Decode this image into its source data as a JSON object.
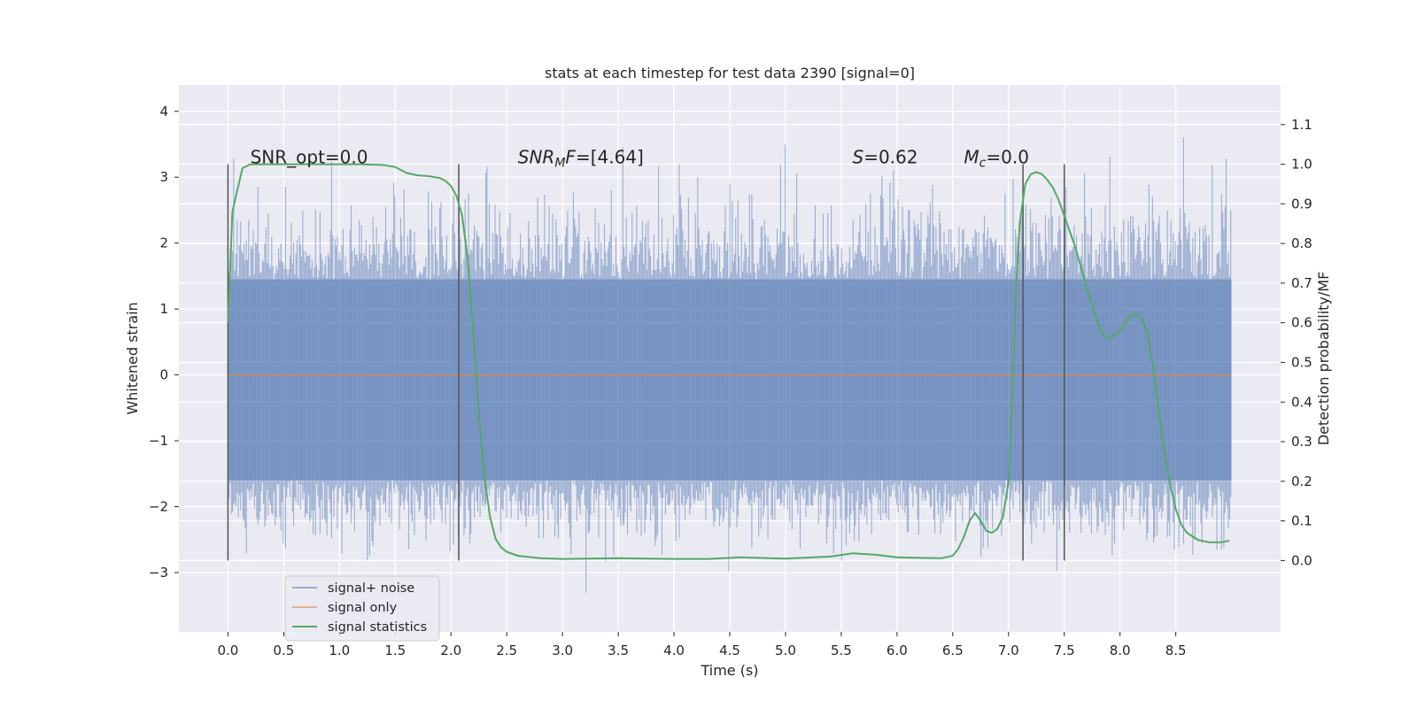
{
  "chart_data": {
    "type": "line",
    "title": "stats at each timestep for test data 2390 [signal=0]",
    "xlabel": "Time (s)",
    "ylabel": "Whitened strain",
    "y2label": "Detection probability/MF",
    "xlim": [
      -0.44,
      9.44
    ],
    "ylim": [
      -3.9,
      4.4
    ],
    "y2lim": [
      -0.18,
      1.2
    ],
    "x_ticks": [
      "0.0",
      "0.5",
      "1.0",
      "1.5",
      "2.0",
      "2.5",
      "3.0",
      "3.5",
      "4.0",
      "4.5",
      "5.0",
      "5.5",
      "6.0",
      "6.5",
      "7.0",
      "7.5",
      "8.0",
      "8.5"
    ],
    "y_ticks": [
      "−3",
      "−2",
      "−1",
      "0",
      "1",
      "2",
      "3",
      "4"
    ],
    "y2_ticks": [
      "0.0",
      "0.1",
      "0.2",
      "0.3",
      "0.4",
      "0.5",
      "0.6",
      "0.7",
      "0.8",
      "0.9",
      "1.0",
      "1.1"
    ],
    "grid": true,
    "legend_position": "lower-left",
    "annotations": [
      {
        "id": "snr-opt",
        "x": 0.2,
        "y": 3.2,
        "text": "SNR_opt=0.0"
      },
      {
        "id": "snr-mf",
        "x": 2.6,
        "y": 3.2,
        "text": "SNRMF=[4.64]"
      },
      {
        "id": "s-stat",
        "x": 5.6,
        "y": 3.2,
        "text": "S=0.62"
      },
      {
        "id": "mc-stat",
        "x": 6.6,
        "y": 3.2,
        "text": "Mc=0.0"
      }
    ],
    "vertical_markers": [
      0.0,
      2.07,
      7.13,
      7.5
    ],
    "series": [
      {
        "name": "signal+ noise",
        "color": "#4c72b0",
        "axis": "left",
        "x_range": [
          0.0,
          9.0
        ],
        "noise_band": {
          "typical_low": -1.6,
          "typical_high": 1.45,
          "peak_high": 4.0,
          "peak_low": -3.55
        }
      },
      {
        "name": "signal only",
        "color": "#dd8452",
        "axis": "left",
        "x": [
          0.0,
          9.0
        ],
        "y": [
          0.0,
          0.0
        ]
      },
      {
        "name": "signal statistics",
        "color": "#55a868",
        "axis": "right",
        "x": [
          0.0,
          0.04,
          0.08,
          0.13,
          0.2,
          0.3,
          0.45,
          0.6,
          0.8,
          1.0,
          1.2,
          1.4,
          1.5,
          1.6,
          1.7,
          1.8,
          1.9,
          1.95,
          2.0,
          2.05,
          2.1,
          2.15,
          2.2,
          2.25,
          2.3,
          2.35,
          2.4,
          2.45,
          2.5,
          2.6,
          2.8,
          3.0,
          3.5,
          4.0,
          4.3,
          4.6,
          5.0,
          5.4,
          5.6,
          5.8,
          6.0,
          6.4,
          6.5,
          6.55,
          6.6,
          6.65,
          6.7,
          6.75,
          6.8,
          6.85,
          6.9,
          6.95,
          7.0,
          7.03,
          7.07,
          7.1,
          7.15,
          7.2,
          7.25,
          7.3,
          7.35,
          7.4,
          7.45,
          7.5,
          7.6,
          7.7,
          7.8,
          7.85,
          7.9,
          7.95,
          8.0,
          8.05,
          8.1,
          8.15,
          8.2,
          8.25,
          8.3,
          8.35,
          8.4,
          8.45,
          8.5,
          8.55,
          8.6,
          8.7,
          8.8,
          8.9,
          8.98
        ],
        "y": [
          0.6,
          0.88,
          0.93,
          0.99,
          1.0,
          1.0,
          1.0,
          1.0,
          1.0,
          1.0,
          1.0,
          0.998,
          0.993,
          0.978,
          0.972,
          0.97,
          0.965,
          0.958,
          0.945,
          0.92,
          0.87,
          0.76,
          0.58,
          0.37,
          0.21,
          0.11,
          0.055,
          0.033,
          0.022,
          0.012,
          0.006,
          0.004,
          0.006,
          0.004,
          0.004,
          0.008,
          0.005,
          0.01,
          0.018,
          0.015,
          0.008,
          0.006,
          0.012,
          0.03,
          0.06,
          0.1,
          0.12,
          0.1,
          0.075,
          0.07,
          0.08,
          0.11,
          0.2,
          0.4,
          0.7,
          0.85,
          0.95,
          0.975,
          0.98,
          0.975,
          0.96,
          0.94,
          0.91,
          0.87,
          0.79,
          0.69,
          0.6,
          0.57,
          0.56,
          0.57,
          0.58,
          0.6,
          0.62,
          0.62,
          0.61,
          0.57,
          0.48,
          0.37,
          0.27,
          0.19,
          0.13,
          0.09,
          0.07,
          0.052,
          0.046,
          0.046,
          0.05
        ]
      }
    ]
  }
}
